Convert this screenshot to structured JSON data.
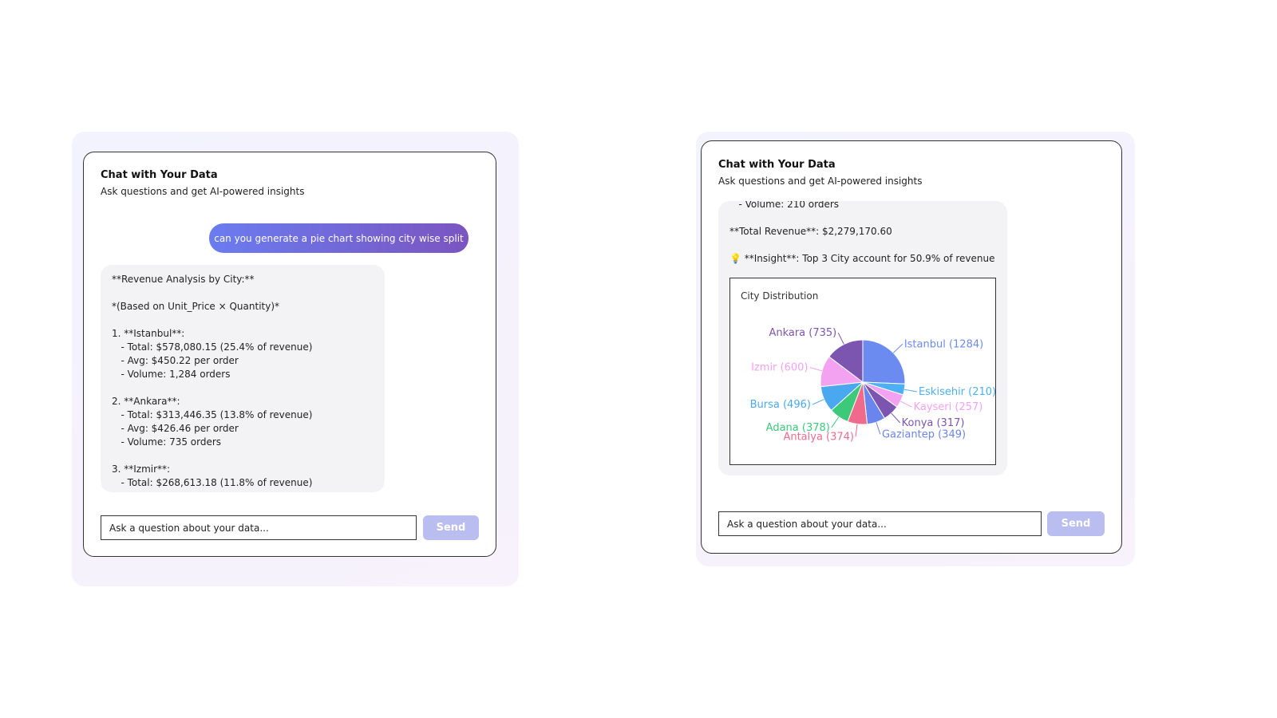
{
  "panels": [
    {
      "header": {
        "title": "Chat with Your Data",
        "subtitle": "Ask questions and get AI-powered insights"
      },
      "user_message": "can you generate a pie chart showing city wise split",
      "reply": {
        "paragraphs": [
          [
            "**Revenue Analysis by City:**"
          ],
          [
            "*(Based on Unit_Price × Quantity)*"
          ],
          [
            "1. **Istanbul**:",
            "   - Total: $578,080.15 (25.4% of revenue)",
            "   - Avg: $450.22 per order",
            "   - Volume: 1,284 orders"
          ],
          [
            "2. **Ankara**:",
            "   - Total: $313,446.35 (13.8% of revenue)",
            "   - Avg: $426.46 per order",
            "   - Volume: 735 orders"
          ],
          [
            "3. **Izmir**:",
            "   - Total: $268,613.18 (11.8% of revenue)"
          ]
        ]
      },
      "input": {
        "placeholder": "Ask a question about your data...",
        "button": "Send"
      }
    },
    {
      "header": {
        "title": "Chat with Your Data",
        "subtitle": "Ask questions and get AI-powered insights"
      },
      "reply": {
        "paragraphs": [
          [
            "   - Volume: 210 orders"
          ],
          [
            "**Total Revenue**: $2,279,170.60"
          ],
          [
            "💡 **Insight**: Top 3 City account for 50.9% of revenue"
          ]
        ],
        "chart": {
          "type": "pie",
          "title": "City Distribution",
          "values": [
            1284,
            210,
            257,
            317,
            349,
            374,
            378,
            496,
            600,
            735
          ],
          "value_labels": [
            "Istanbul (1284)",
            "Eskisehir (210)",
            "Kayseri (257)",
            "Konya (317)",
            "Gaziantep (349)",
            "Antalya (374)",
            "Adana (378)",
            "Bursa (496)",
            "Izmir (600)",
            "Ankara (735)"
          ],
          "colors": [
            "#6b8bf0",
            "#4db0f5",
            "#f2a2f0",
            "#7c55b0",
            "#6a85ee",
            "#f06a8c",
            "#3cc97a",
            "#4aa8f0",
            "#f2a2f0",
            "#7c55b0"
          ]
        }
      },
      "input": {
        "placeholder": "Ask a question about your data...",
        "button": "Send"
      }
    }
  ]
}
